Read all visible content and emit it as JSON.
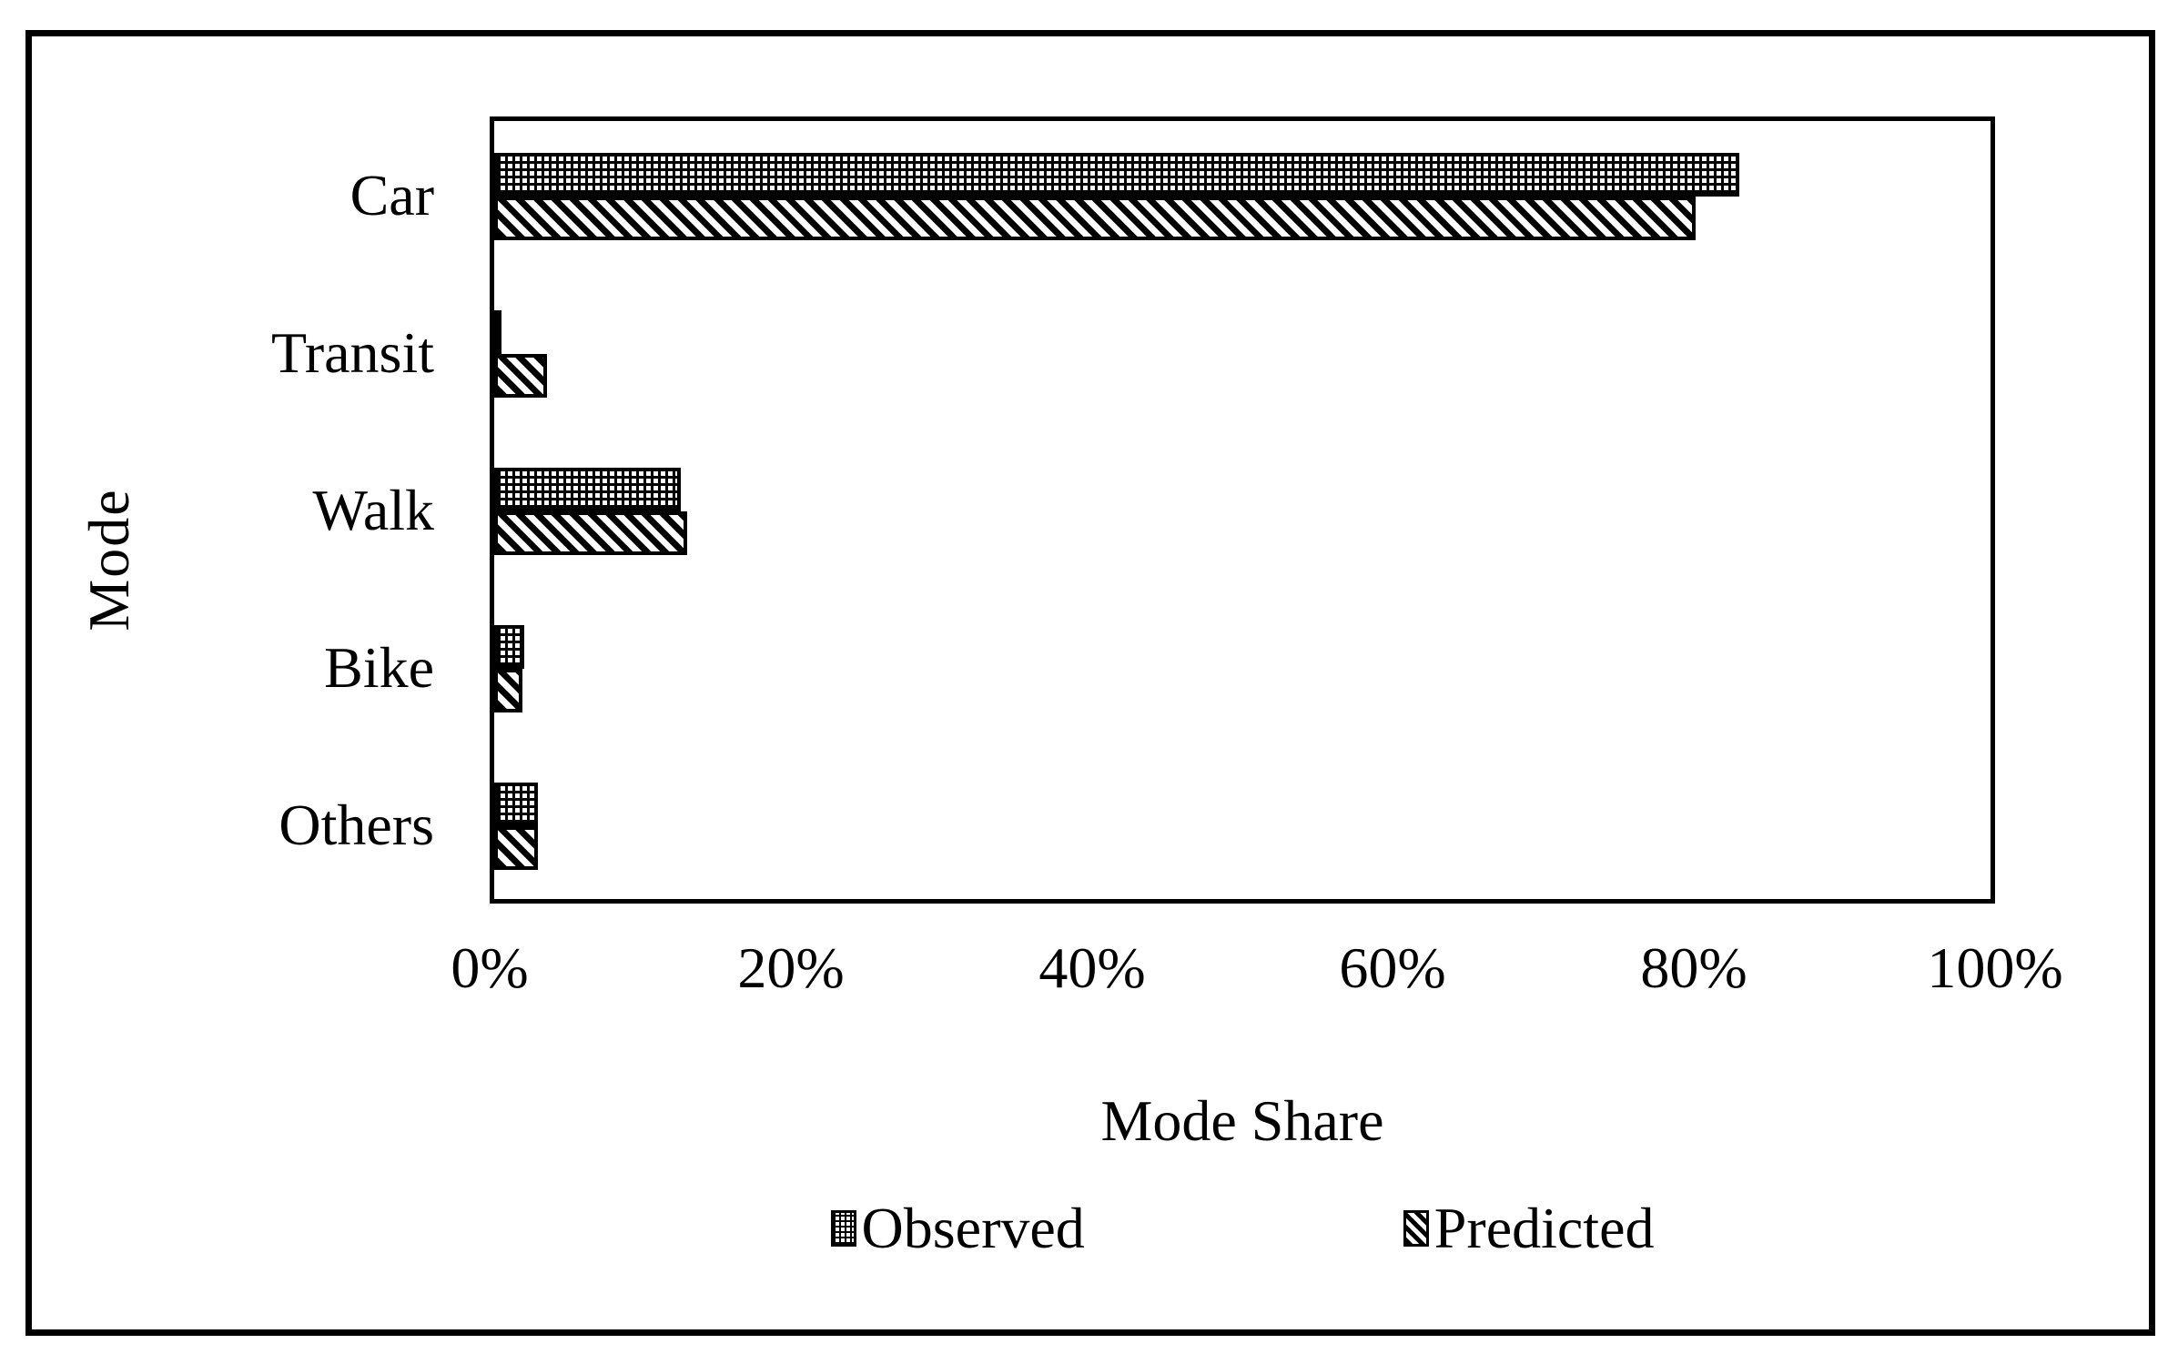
{
  "chart_data": {
    "type": "bar",
    "orientation": "horizontal",
    "xlabel": "Mode Share",
    "ylabel": "Mode",
    "categories": [
      "Car",
      "Transit",
      "Walk",
      "Bike",
      "Others"
    ],
    "series": [
      {
        "name": "Observed",
        "pattern": "dots",
        "values": [
          82.7,
          0.4,
          12.4,
          2.0,
          2.9
        ]
      },
      {
        "name": "Predicted",
        "pattern": "diagonal-hatch",
        "values": [
          79.8,
          3.5,
          12.8,
          1.9,
          2.9
        ]
      }
    ],
    "x_ticks": [
      "0%",
      "20%",
      "40%",
      "60%",
      "80%",
      "100%"
    ],
    "x_tick_values": [
      0,
      20,
      40,
      60,
      80,
      100
    ],
    "xlim": [
      0,
      100
    ],
    "value_unit": "%",
    "grid": false,
    "legend_position": "bottom",
    "colors": {
      "foreground": "#000000",
      "background": "#ffffff"
    }
  }
}
